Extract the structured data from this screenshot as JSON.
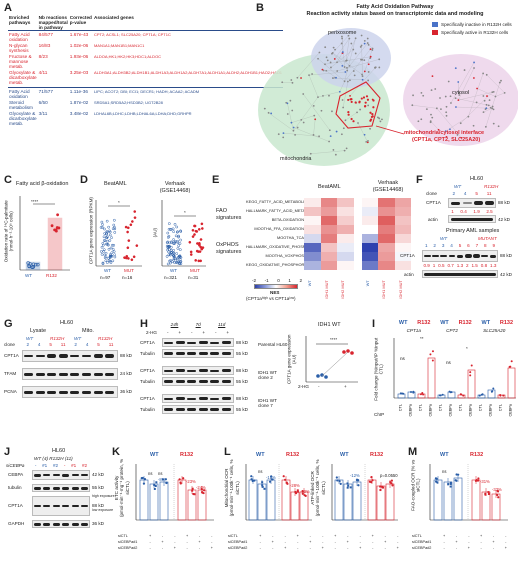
{
  "colors": {
    "wt": "#2a5ea8",
    "mut": "#d8242e",
    "header_blue": "#2a4c8a"
  },
  "panels": {
    "A": "A",
    "B": "B",
    "C": "C",
    "D": "D",
    "E": "E",
    "F": "F",
    "G": "G",
    "H": "H",
    "I": "I",
    "J": "J",
    "K": "K",
    "L": "L",
    "M": "M"
  },
  "table_a": {
    "headers": [
      "Enriched pathways",
      "Nb reactions mapped/total in pathway",
      "Corrected p-value",
      "Associated genes"
    ],
    "rows_red": [
      [
        "Fatty Acid oxidation",
        "84/577",
        "1.67e-43",
        "CPT2; ACSL1; SLC25A20; CPT1A; CPT1C"
      ],
      [
        "N-glycan synthesis",
        "16/83",
        "1.02e-06",
        "MAN1A1;MAN1B1;MAN1C1"
      ],
      [
        "Fructose & mannose metab.",
        "8/23",
        "1.93e-06",
        "ALDOA;HK1;HK2;HK3;HDC1;ALDOC"
      ],
      [
        "Glyoxylate & dicarboxylate metab.",
        "4/11",
        "3.25e-03",
        "ALDH3A1;ALDH3B2;ALDH1B1;ALDH1A3;ALDH1A2;ALDH7A1;ALDH1A1;ALDH2;ALDH1B1;HAO2;HAO1"
      ]
    ],
    "rows_blue": [
      [
        "Fatty Acid oxidation",
        "71/577",
        "1.11e-36",
        "LIPC; ACOT2; DBI; ECI1; DECR1; HADH; ACAA2; ACADM"
      ],
      [
        "Steroid metabolism",
        "6/50",
        "1.87e-02",
        "SRD5A1;SRD5A2;HSD3B2; UGT2B28"
      ],
      [
        "Glyoxylate & dicarboxylate metab.",
        "3/11",
        "3.48e-02",
        "LDHAL6B;LDHC;LDHB;LDHAL6A;LDHA;DHD;GRHPR"
      ]
    ]
  },
  "panel_b": {
    "title": "Fatty Acid Oxidation Pathway",
    "subtitle": "Reaction activity status based on transcriptomic data and modeling",
    "legend_blue": "Specifically inactive in R132H cells",
    "legend_red": "Specifically active in R132H cells",
    "label_peroxisome": "perixosome",
    "label_cytosol": "cytosol",
    "label_mito": "mitochondria",
    "interface_title": "mitochondria/cytosol interface",
    "interface_genes": "(CPT1a, CPT2, SLC25A20)"
  },
  "panel_c": {
    "title": "Fatty acid β-oxidation",
    "ylabel": "Oxidation rate of ¹⁴C-palmitate (nmol·h⁻¹·10⁶ cells)",
    "sig": "****",
    "groups": [
      "WT",
      "R132"
    ]
  },
  "panel_d": {
    "left_title": "BeatAML",
    "right_title": "Verhaak (GSE14468)",
    "ylabel_left": "CPT1A gene expression (RPKM)",
    "ylabel_right": "(AU)",
    "left_groups": [
      "WT",
      "MUT"
    ],
    "left_n": [
      "n=97",
      "n=16"
    ],
    "right_groups": [
      "WT",
      "MUT"
    ],
    "right_n": [
      "n=321",
      "n=31"
    ],
    "sig_left": "*",
    "sig_right": "*"
  },
  "panel_e": {
    "col1": "BeatAML",
    "col2": "Verhaak (GSE14468)",
    "group1": "FAO signatures",
    "group2": "OxPHOS signatures",
    "rows": [
      "KEGG_FATTY_ACID_METABOLISM",
      "HALLMARK_FATTY_ACID_METABOLISM",
      "BETA-OXIDATION",
      "MOOTHA_FFA_OXIDATION",
      "MOOTHA_TCA",
      "HALLMARK_OXIDATIVE_PHOSPHORYLATION",
      "MOOTHA_VOXPHOS",
      "KEGG_OXIDATIVE_PHOSPHORYLATION"
    ],
    "col_labels": [
      "WT",
      "IDH1 MUT",
      "IDH2 MUT",
      "WT",
      "IDH1 MUT",
      "IDH2 MUT"
    ],
    "nes_label": "NES",
    "nes_sub": "(CPT1aʰⁱᵍʰ vs CPT1aˡᵒʷ)",
    "nes_ticks": [
      "-2",
      "-1",
      "0",
      "1",
      "2"
    ]
  },
  "panel_f": {
    "title": "HL60",
    "groups": [
      "WT",
      "R132H"
    ],
    "clone_label": "clone",
    "clones": [
      "2",
      "4",
      "5",
      "11"
    ],
    "rows": [
      "CPT1A",
      "actin"
    ],
    "mw": [
      "88 kD",
      "42 kD"
    ],
    "quant": [
      "1",
      "0.4",
      "1.9",
      "2.5"
    ],
    "primary_title": "Primary AML samples",
    "primary_groups": [
      "WT",
      "MUTANT"
    ],
    "primary_ids": [
      "1",
      "2",
      "3",
      "4",
      "5",
      "6",
      "7",
      "8",
      "9"
    ],
    "primary_quant": [
      "0.9",
      "1",
      "0.5",
      "0.7",
      "1.3",
      "2",
      "1.5",
      "0.8",
      "1.3"
    ],
    "primary_rows": [
      "CPT1A",
      "actin"
    ]
  },
  "panel_g": {
    "title": "HL60",
    "lysate": "Lysate",
    "mito": "Mito.",
    "groups": [
      "WT",
      "R132H",
      "WT",
      "R132H"
    ],
    "clone_label": "clone",
    "clones": [
      "2",
      "4",
      "5",
      "11",
      "2",
      "4",
      "5",
      "11"
    ],
    "rows": [
      "CPT1A",
      "TFAM",
      "PCNA"
    ],
    "mw": [
      "88 kD",
      "24 kD",
      "36 kD"
    ]
  },
  "panel_h": {
    "times": [
      "24h",
      "7d",
      "11d"
    ],
    "twohg": "2-HG",
    "signs": [
      "-",
      "+",
      "-",
      "+",
      "-",
      "+"
    ],
    "blocks": [
      {
        "label": "Parental HL60",
        "rows": [
          "CPT1A",
          "Tubulin"
        ],
        "mw": [
          "88 kD",
          "55 kD"
        ]
      },
      {
        "label": "IDH1 WT clone 2",
        "rows": [
          "CPT1A",
          "Tubulin"
        ],
        "mw": [
          "88 kD",
          "55 kD"
        ]
      },
      {
        "label": "IDH1 WT clone 7",
        "rows": [
          "CPT1A",
          "Tubulin"
        ],
        "mw": [
          "88 kD",
          "55 kD"
        ]
      }
    ],
    "plot_title": "IDH1 WT",
    "plot_ylabel": "CPT1A gene expression (AU)",
    "plot_sig": "****",
    "plot_x": [
      "-",
      "+"
    ],
    "plot_xlabel": "2-HG"
  },
  "panel_i": {
    "groups": [
      "WT",
      "R132",
      "WT",
      "R132",
      "WT",
      "R132"
    ],
    "genes": [
      "CPT1a",
      "CPT2",
      "SLC25A20"
    ],
    "ylabel": "Fold change (%input/IP %input CTL)",
    "x_labels": [
      "CTL",
      "CEBPa",
      "CTL",
      "CEBPa",
      "CTL",
      "CEBPa",
      "CTL",
      "CEBPa",
      "CTL",
      "CEBPa",
      "CTL",
      "CEBPa"
    ],
    "chip": "ChIP",
    "sig": [
      "**",
      "ns",
      "*",
      "ns"
    ]
  },
  "panel_j": {
    "title": "HL60",
    "groups": "WT (4)  R132H (11)",
    "si_label": "siCEBPa",
    "si_signs": [
      "-",
      "#1",
      "#2",
      "-",
      "#1",
      "#2"
    ],
    "rows": [
      "CEBPA",
      "tubulin",
      "CPT1A",
      "GAPDH"
    ],
    "mw": [
      "42 kD",
      "55 kD",
      "88 kD",
      "36 kD"
    ],
    "exposure": [
      "high exposure",
      "low exposure"
    ]
  },
  "panel_k": {
    "titles": [
      "WT",
      "R132"
    ],
    "ylabel": "ETC activity (pmol·min⁻¹·mg⁻¹ protein, % siCTL)",
    "row_labels": [
      "siCTL",
      "siCEBPa#1",
      "siCEBPa#2"
    ],
    "annot": [
      "ns",
      "-8%",
      "ns",
      "-23%",
      "-24%"
    ]
  },
  "panel_l": {
    "titles": [
      "WT",
      "R132",
      "WT",
      "R132"
    ],
    "ylabel1": "Mitochondrial OCR (pmol·min⁻¹·100k⁻¹ cells, % siCTL)",
    "ylabel2": "ATP-linked OCR (pmol·min⁻¹·100k⁻¹ cells, % siCTL)",
    "annot": [
      "ns",
      "-15%",
      "-28%",
      "-30%",
      "-12%",
      "p=0.0550"
    ]
  },
  "panel_m": {
    "titles": [
      "WT",
      "R132"
    ],
    "ylabel": "FAO-coupled OCR (% vs siCTL)",
    "annot": [
      "ns",
      "-31%",
      "-33%"
    ]
  }
}
